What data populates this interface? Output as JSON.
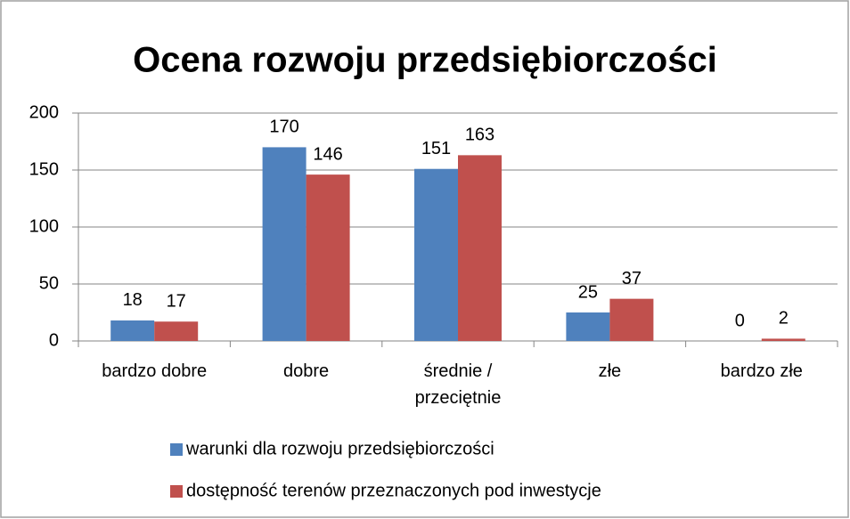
{
  "chart_data": {
    "type": "bar",
    "title": "Ocena rozwoju przedsiębiorczości",
    "categories": [
      "bardzo dobre",
      "dobre",
      "średnie / przeciętnie",
      "złe",
      "bardzo złe"
    ],
    "series": [
      {
        "name": "warunki dla rozwoju przedsiębiorczości",
        "color": "#4f81bd",
        "values": [
          18,
          170,
          151,
          25,
          0
        ]
      },
      {
        "name": "dostępność terenów przeznaczonych pod inwestycje",
        "color": "#c0504d",
        "values": [
          17,
          146,
          163,
          37,
          2
        ]
      }
    ],
    "ylim": [
      0,
      200
    ],
    "yticks": [
      0,
      50,
      100,
      150,
      200
    ],
    "grid": true,
    "legend": "bottom"
  }
}
